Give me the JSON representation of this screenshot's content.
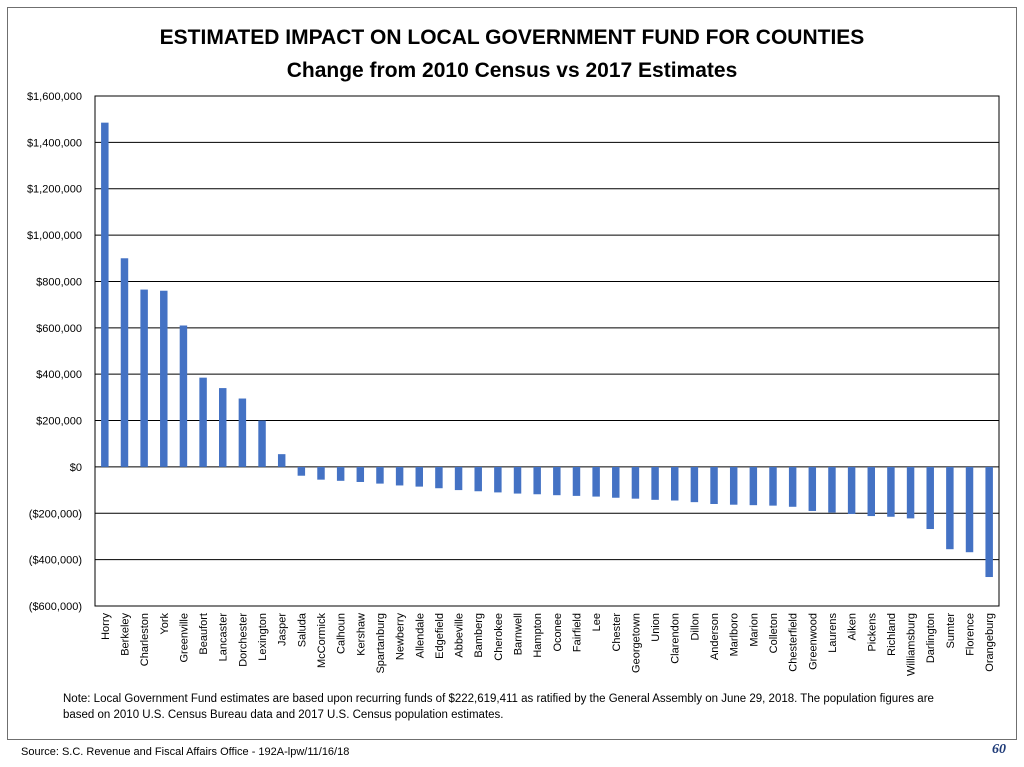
{
  "page": {
    "note": "Note: Local Government Fund estimates are based upon recurring funds of $222,619,411 as ratified by the General Assembly on June 29, 2018. The population figures are based on 2010 U.S. Census Bureau data and 2017 U.S. Census population estimates.",
    "source": "Source: S.C. Revenue and Fiscal Affairs Office - 192A-lpw/11/16/18",
    "page_number": "60"
  },
  "chart_data": {
    "type": "bar",
    "title": "ESTIMATED IMPACT ON LOCAL GOVERNMENT FUND FOR COUNTIES",
    "subtitle": "Change from 2010 Census vs 2017 Estimates",
    "xlabel": "",
    "ylabel": "",
    "ylim": [
      -600000,
      1600000
    ],
    "yticks": [
      1600000,
      1400000,
      1200000,
      1000000,
      800000,
      600000,
      400000,
      200000,
      0,
      -200000,
      -400000,
      -600000
    ],
    "ytick_labels": [
      "$1,600,000",
      "$1,400,000",
      "$1,200,000",
      "$1,000,000",
      "$800,000",
      "$600,000",
      "$400,000",
      "$200,000",
      "$0",
      "($200,000)",
      "($400,000)",
      "($600,000)"
    ],
    "grid": true,
    "bar_color": "#4472c4",
    "categories": [
      "Horry",
      "Berkeley",
      "Charleston",
      "York",
      "Greenville",
      "Beaufort",
      "Lancaster",
      "Dorchester",
      "Lexington",
      "Jasper",
      "Saluda",
      "McCormick",
      "Calhoun",
      "Kershaw",
      "Spartanburg",
      "Newberry",
      "Allendale",
      "Edgefield",
      "Abbeville",
      "Bamberg",
      "Cherokee",
      "Barnwell",
      "Hampton",
      "Oconee",
      "Fairfield",
      "Lee",
      "Chester",
      "Georgetown",
      "Union",
      "Clarendon",
      "Dillon",
      "Anderson",
      "Marlboro",
      "Marion",
      "Colleton",
      "Chesterfield",
      "Greenwood",
      "Laurens",
      "Aiken",
      "Pickens",
      "Richland",
      "Williamsburg",
      "Darlington",
      "Sumter",
      "Florence",
      "Orangeburg"
    ],
    "values": [
      1485000,
      900000,
      765000,
      760000,
      610000,
      385000,
      340000,
      295000,
      200000,
      55000,
      -38000,
      -55000,
      -60000,
      -65000,
      -72000,
      -80000,
      -85000,
      -92000,
      -100000,
      -105000,
      -110000,
      -115000,
      -118000,
      -122000,
      -125000,
      -128000,
      -133000,
      -137000,
      -142000,
      -145000,
      -152000,
      -160000,
      -163000,
      -165000,
      -167000,
      -172000,
      -190000,
      -197000,
      -203000,
      -212000,
      -215000,
      -222000,
      -268000,
      -355000,
      -368000,
      -475000
    ]
  }
}
